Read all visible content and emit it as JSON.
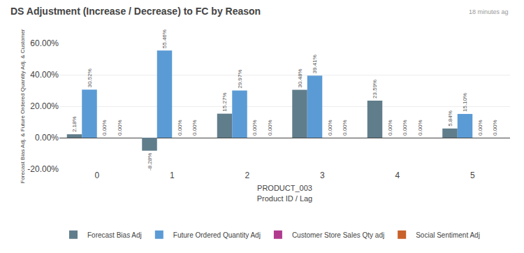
{
  "chart_data": {
    "type": "bar",
    "title": "DS Adjustment (Increase / Decrease) to FC by Reason",
    "xlabel": [
      "PRODUCT_003",
      "Product ID / Lag"
    ],
    "ylabel": "Forecast Bias Adj. & Future Ordered Quantity Adj. & Customer",
    "categories": [
      0,
      1,
      2,
      3,
      4,
      5
    ],
    "series": [
      {
        "name": "Forecast Bias Adj",
        "color": "#607d8b",
        "values": [
          2.18,
          -8.28,
          15.27,
          30.48,
          23.59,
          5.84
        ],
        "value_labels": [
          "2.18%",
          "-8.28%",
          "15.27%",
          "30.48%",
          "23.59%",
          "5.84%"
        ]
      },
      {
        "name": "Future Ordered Quantity Adj",
        "color": "#5b9bd5",
        "values": [
          30.52,
          55.46,
          29.97,
          39.41,
          0.0,
          15.1
        ],
        "value_labels": [
          "30.52%",
          "55.46%",
          "29.97%",
          "39.41%",
          "0.00%",
          "15.10%"
        ]
      },
      {
        "name": "Customer Store Sales Qty adj",
        "color": "#b03a8e",
        "values": [
          0.0,
          0.0,
          0.0,
          0.0,
          0.0,
          0.0
        ],
        "value_labels": [
          "0.00%",
          "0.00%",
          "0.00%",
          "0.00%",
          "0.00%",
          "0.00%"
        ]
      },
      {
        "name": "Social Sentiment Adj",
        "color": "#c8612a",
        "values": [
          0.0,
          0.0,
          0.0,
          0.0,
          0.0,
          0.0
        ],
        "value_labels": [
          "0.00%",
          "0.00%",
          "0.00%",
          "0.00%",
          "0.00%",
          "0.00%"
        ]
      }
    ],
    "ylim": [
      -20,
      60
    ],
    "yticks": [
      {
        "value": -20,
        "label": "-20.00%"
      },
      {
        "value": 0,
        "label": "0.00%"
      },
      {
        "value": 20,
        "label": "20.00%"
      },
      {
        "value": 40,
        "label": "40.00%"
      },
      {
        "value": 60,
        "label": "60.00%"
      }
    ],
    "grid": true,
    "data_labels": true,
    "legend": "bottom",
    "annotations": [
      "18 minutes ag"
    ]
  }
}
